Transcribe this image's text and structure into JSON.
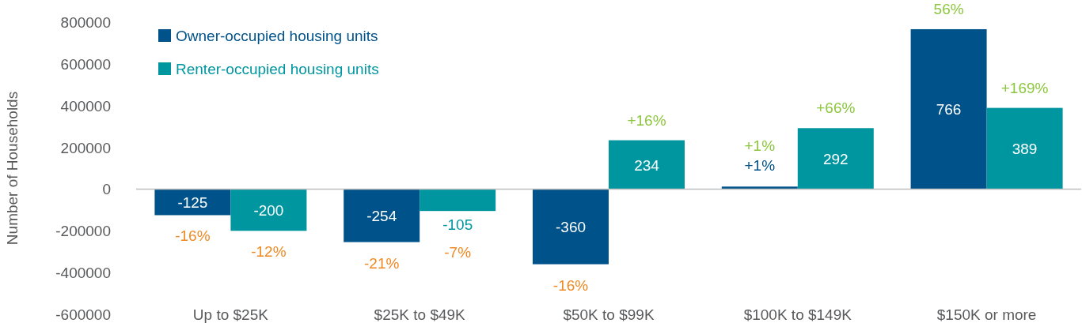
{
  "chart_data": {
    "type": "bar",
    "ylabel": "Number of Households",
    "categories": [
      "Up to $25K",
      "$25K to $49K",
      "$50K to $99K",
      "$100K to $149K",
      "$150K or more"
    ],
    "series": [
      {
        "name": "Owner-occupied housing units",
        "color": "#00538a",
        "values": [
          -125000,
          -254000,
          -360000,
          12000,
          766000
        ]
      },
      {
        "name": "Renter-occupied housing units",
        "color": "#0096a0",
        "values": [
          -200000,
          -105000,
          234000,
          292000,
          389000
        ]
      }
    ],
    "ylim": [
      -600000,
      800000
    ],
    "yticks": [
      -600000,
      -400000,
      -200000,
      0,
      200000,
      400000,
      600000,
      800000
    ],
    "legend": "top left",
    "annotations": [
      "-125",
      "-200",
      "-254",
      "-105",
      "-360",
      "234",
      "+1%",
      "292",
      "766",
      "389",
      "-16%",
      "-12%",
      "-21%",
      "-7%",
      "-16%",
      "+16%",
      "+1%",
      "+66%",
      "56%",
      "+169%"
    ]
  }
}
